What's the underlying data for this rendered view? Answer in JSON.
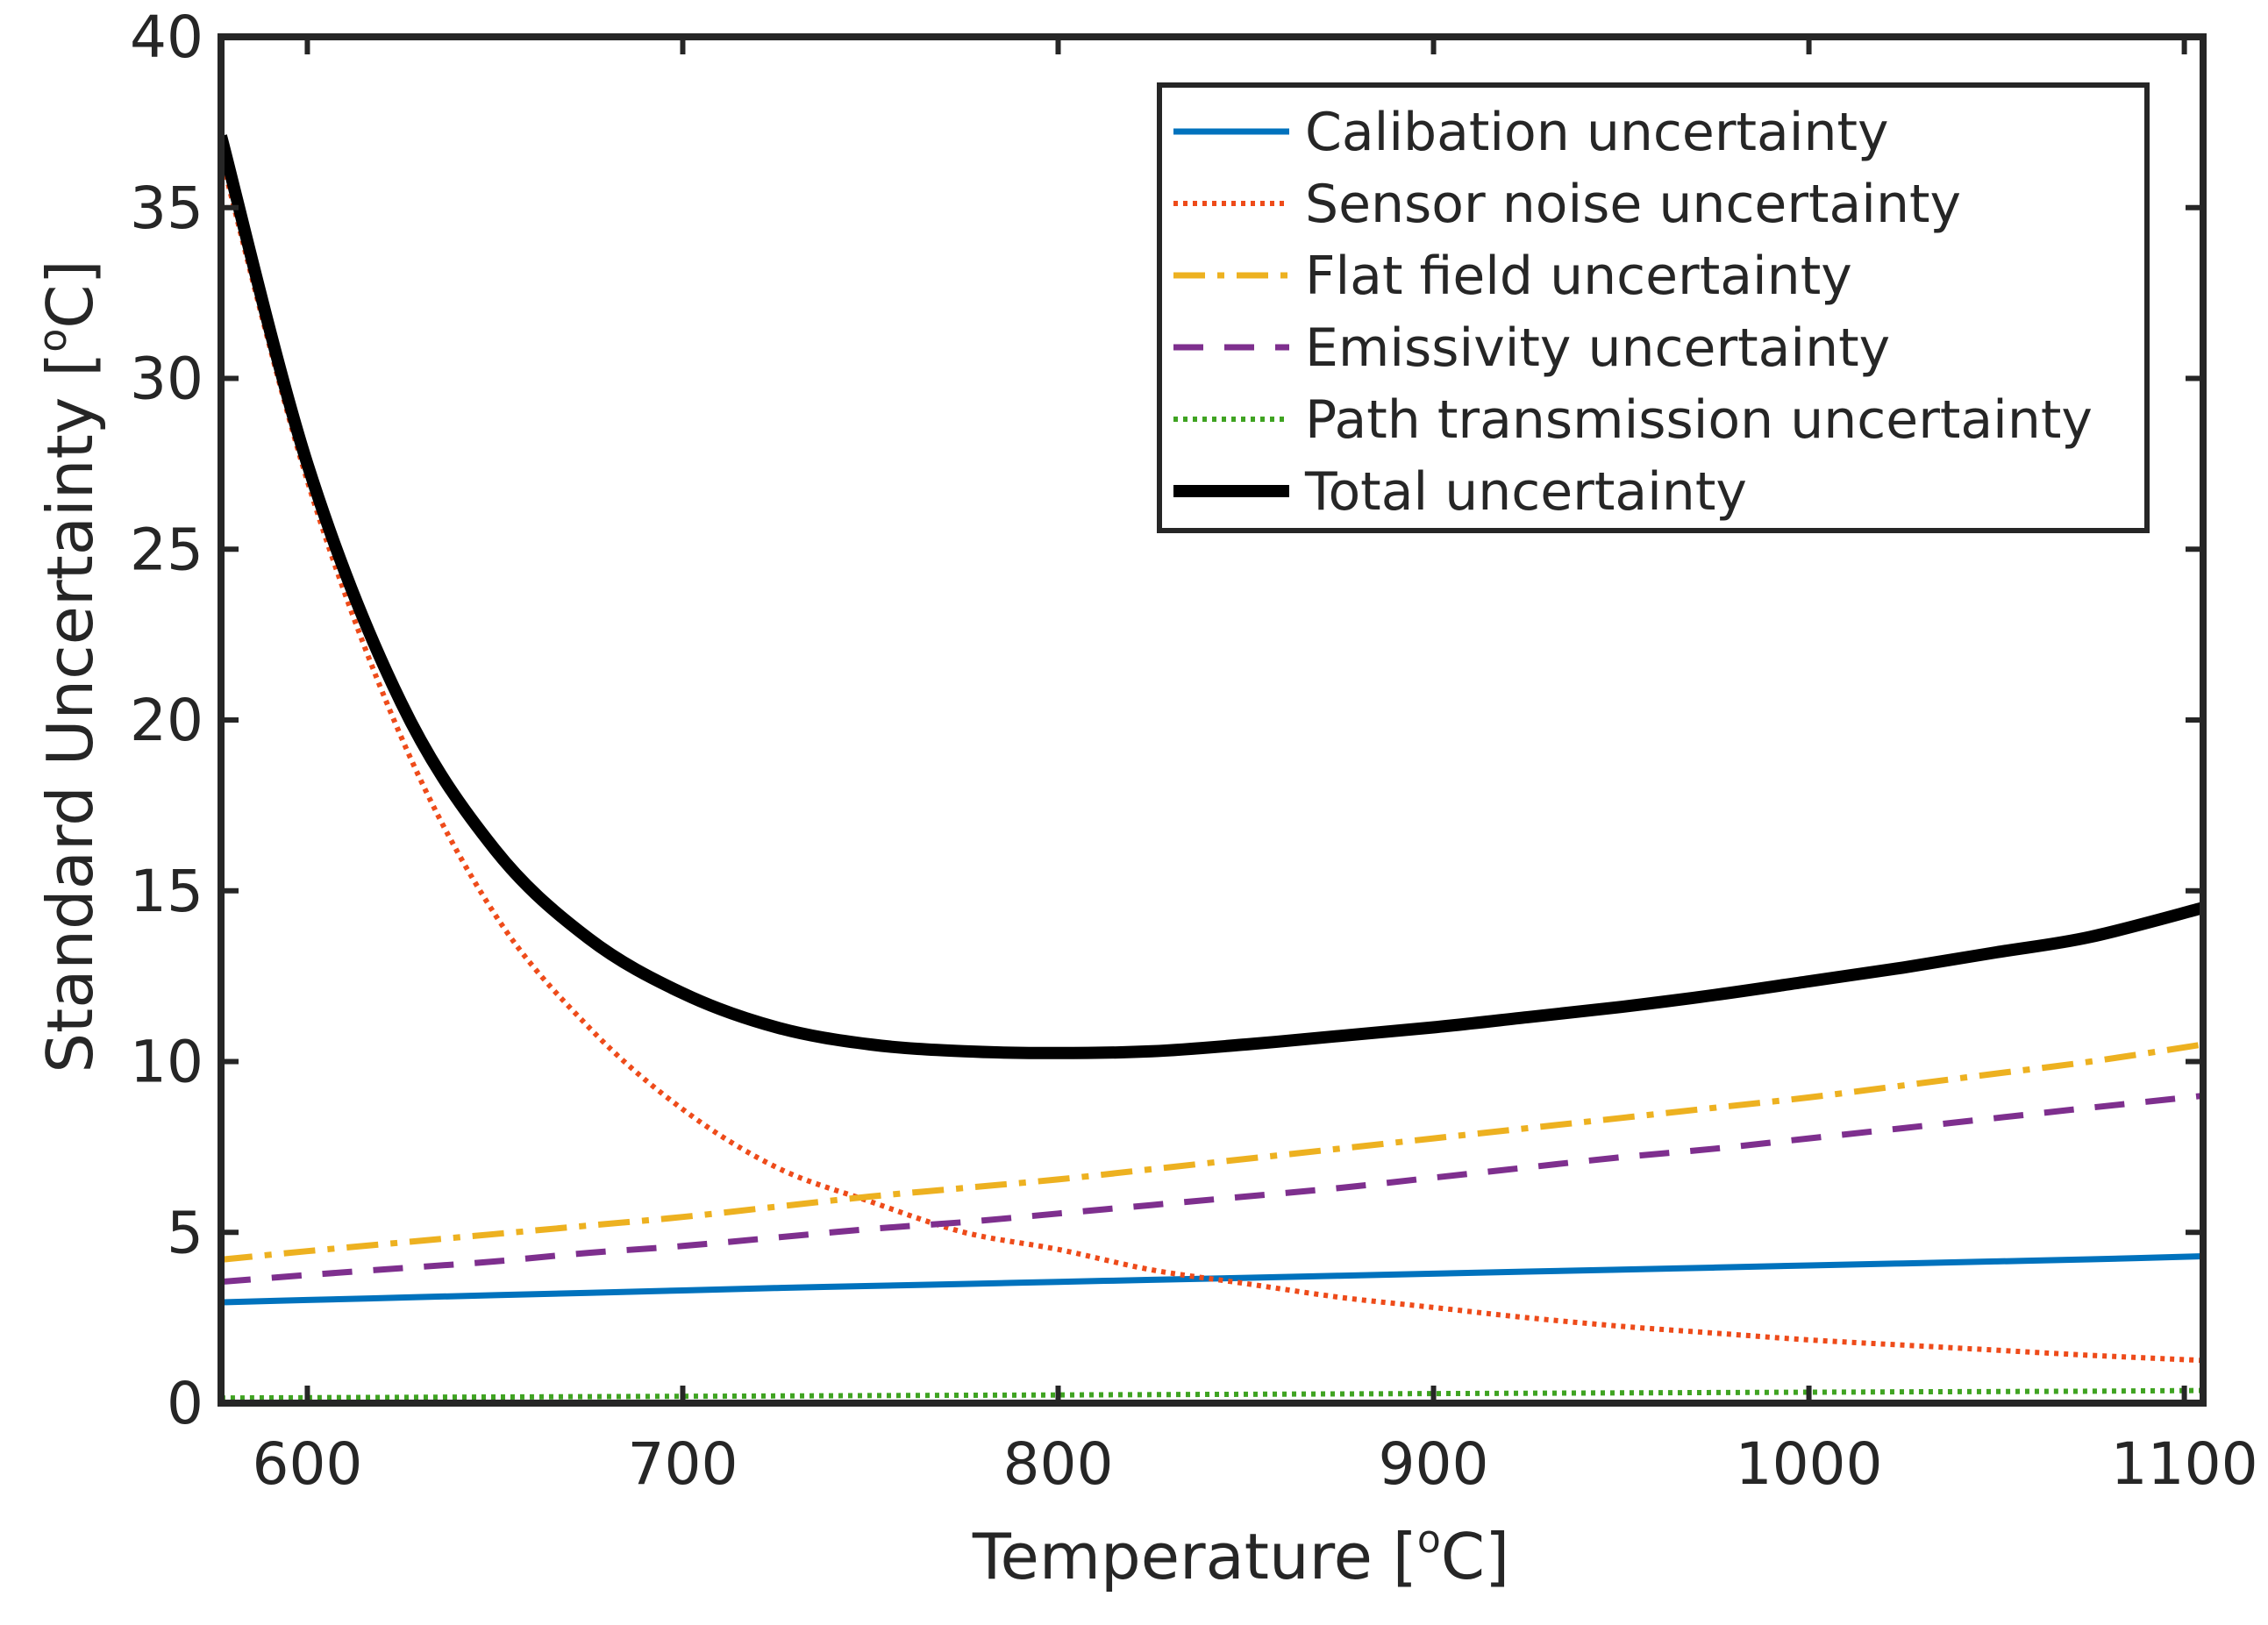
{
  "chart_data": {
    "type": "line",
    "title": "",
    "xlabel": "Temperature [",
    "xlabel_unit": "C]",
    "ylabel": "Standard Uncertainty [",
    "ylabel_unit": "C]",
    "degree_mark": "o",
    "xlim": [
      577,
      1105
    ],
    "ylim": [
      0,
      40
    ],
    "xticks": [
      600,
      700,
      800,
      900,
      1000,
      1100
    ],
    "yticks": [
      0,
      5,
      10,
      15,
      20,
      25,
      30,
      35,
      40
    ],
    "grid": false,
    "legend_position": "top-right",
    "x": [
      577,
      600,
      625,
      650,
      675,
      700,
      725,
      750,
      775,
      800,
      825,
      850,
      875,
      900,
      925,
      950,
      975,
      1000,
      1025,
      1050,
      1075,
      1105
    ],
    "series": [
      {
        "name": "Calibation uncertainty",
        "color": "#0072BD",
        "style": "solid",
        "values": [
          2.95,
          3.02,
          3.09,
          3.16,
          3.23,
          3.3,
          3.37,
          3.43,
          3.49,
          3.55,
          3.61,
          3.67,
          3.73,
          3.79,
          3.85,
          3.91,
          3.97,
          4.03,
          4.09,
          4.15,
          4.21,
          4.3
        ]
      },
      {
        "name": "Sensor noise uncertainty",
        "color": "#EE4B1A",
        "style": "dotted",
        "values": [
          36.5,
          27.0,
          19.5,
          14.3,
          11.0,
          8.6,
          6.9,
          5.9,
          5.0,
          4.5,
          3.9,
          3.5,
          3.1,
          2.8,
          2.5,
          2.25,
          2.05,
          1.85,
          1.7,
          1.55,
          1.4,
          1.25
        ]
      },
      {
        "name": "Flat field uncertainty",
        "color": "#EDB120",
        "style": "dashdot",
        "values": [
          4.2,
          4.45,
          4.7,
          4.95,
          5.2,
          5.45,
          5.75,
          6.05,
          6.3,
          6.55,
          6.85,
          7.15,
          7.45,
          7.75,
          8.05,
          8.35,
          8.65,
          8.95,
          9.3,
          9.65,
          10.0,
          10.5
        ]
      },
      {
        "name": "Emissivity uncertainty",
        "color": "#7E2F8E",
        "style": "dashed",
        "values": [
          3.55,
          3.75,
          3.95,
          4.15,
          4.4,
          4.6,
          4.85,
          5.1,
          5.3,
          5.55,
          5.8,
          6.05,
          6.3,
          6.6,
          6.9,
          7.2,
          7.45,
          7.75,
          8.05,
          8.35,
          8.65,
          9.0
        ]
      },
      {
        "name": "Path transmission uncertainty",
        "color": "#3FA321",
        "style": "dotted",
        "values": [
          0.15,
          0.16,
          0.17,
          0.18,
          0.19,
          0.2,
          0.21,
          0.22,
          0.23,
          0.24,
          0.25,
          0.26,
          0.27,
          0.28,
          0.29,
          0.3,
          0.31,
          0.32,
          0.33,
          0.34,
          0.35,
          0.37
        ]
      },
      {
        "name": "Total uncertainty",
        "color": "#000000",
        "style": "solid-thick",
        "values": [
          37.1,
          27.5,
          20.5,
          16.2,
          13.6,
          12.0,
          11.0,
          10.5,
          10.3,
          10.25,
          10.3,
          10.5,
          10.75,
          11.0,
          11.3,
          11.6,
          11.95,
          12.35,
          12.75,
          13.2,
          13.65,
          14.5
        ]
      }
    ]
  }
}
